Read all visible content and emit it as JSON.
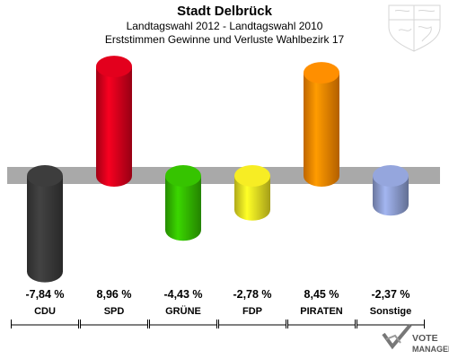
{
  "header": {
    "title": "Stadt Delbrück",
    "subtitle1": "Landtagswahl 2012 - Landtagswahl 2010",
    "subtitle2": "Erststimmen Gewinne und Verluste Wahlbezirk 17"
  },
  "branding": {
    "line1": "VOTE",
    "line2": "MANAGER"
  },
  "chart_data": {
    "type": "bar",
    "title": "Stadt Delbrück",
    "categories": [
      "CDU",
      "SPD",
      "GRÜNE",
      "FDP",
      "PIRATEN",
      "Sonstige"
    ],
    "values": [
      -7.84,
      8.96,
      -4.43,
      -2.78,
      8.45,
      -2.37
    ],
    "value_labels": [
      "-7,84 %",
      "8,96 %",
      "-4,43 %",
      "-2,78 %",
      "8,45 %",
      "-2,37 %"
    ],
    "colors": [
      "#3a3a3a",
      "#d8001c",
      "#33bb00",
      "#ebe222",
      "#ff8800",
      "#8e9ed2"
    ],
    "ylim": [
      -10,
      10
    ],
    "grid": false,
    "legend": "none"
  }
}
